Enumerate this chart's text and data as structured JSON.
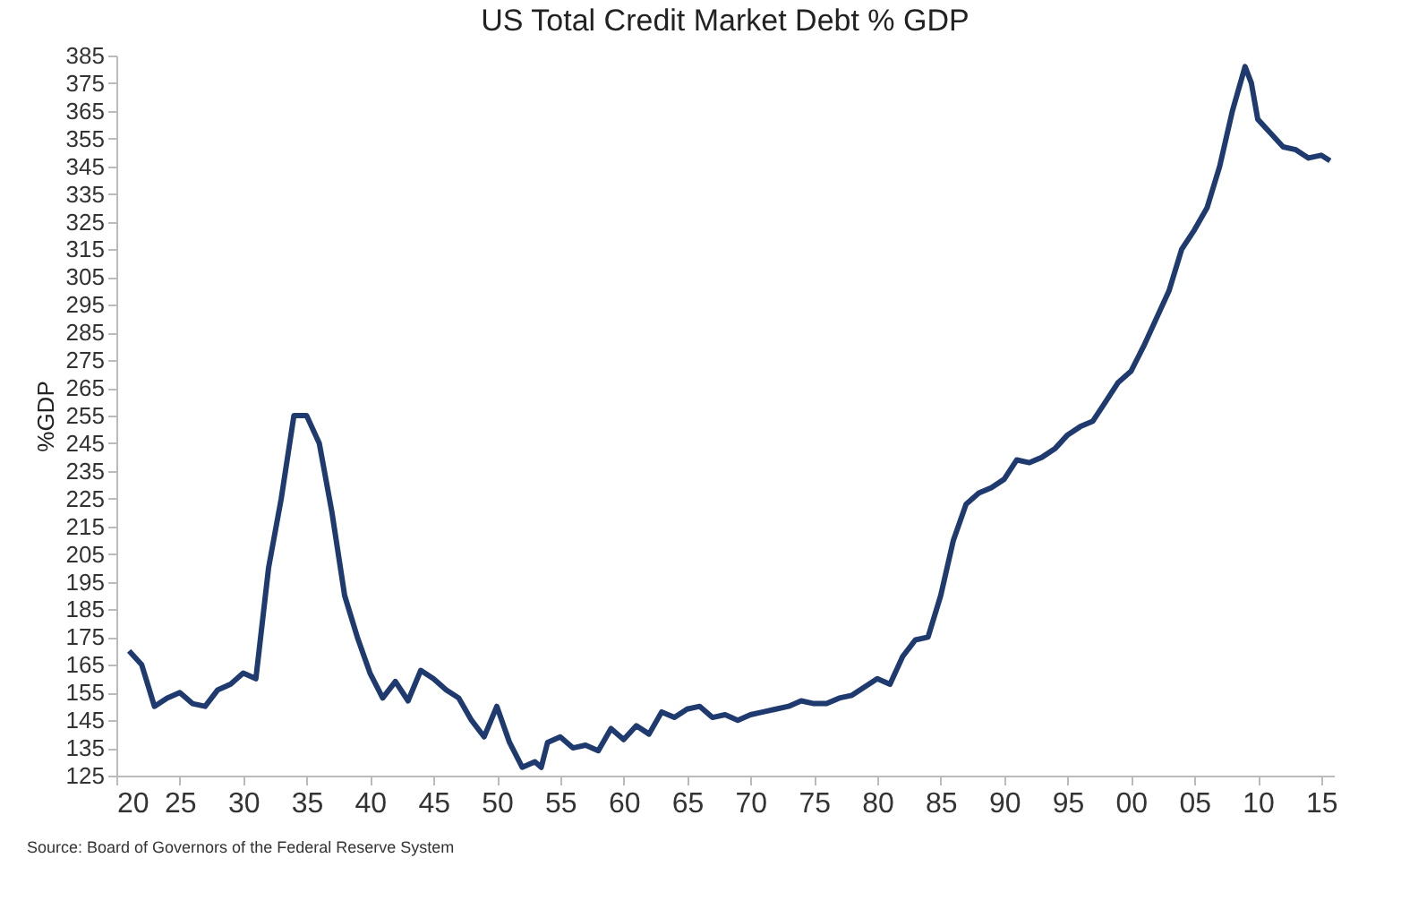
{
  "chart_data": {
    "type": "line",
    "title": "US Total Credit Market Debt % GDP",
    "ylabel": "%GDP",
    "annotations": [
      "Source: Board of Governors of the Federal Reserve System"
    ],
    "x": [
      1921,
      1922,
      1923,
      1924,
      1925,
      1926,
      1927,
      1928,
      1929,
      1930,
      1931,
      1932,
      1933,
      1934,
      1935,
      1936,
      1937,
      1938,
      1939,
      1940,
      1941,
      1942,
      1943,
      1944,
      1945,
      1946,
      1947,
      1948,
      1949,
      1950,
      1951,
      1952,
      1953,
      1953.5,
      1954,
      1955,
      1956,
      1957,
      1958,
      1959,
      1960,
      1961,
      1962,
      1963,
      1964,
      1965,
      1966,
      1967,
      1968,
      1969,
      1970,
      1971,
      1972,
      1973,
      1974,
      1975,
      1976,
      1977,
      1978,
      1979,
      1980,
      1981,
      1982,
      1983,
      1984,
      1985,
      1986,
      1987,
      1988,
      1989,
      1990,
      1991,
      1992,
      1993,
      1994,
      1995,
      1996,
      1997,
      1998,
      1999,
      2000,
      2001,
      2002,
      2003,
      2004,
      2005,
      2006,
      2007,
      2008,
      2009,
      2009.5,
      2010,
      2011,
      2012,
      2013,
      2014,
      2015,
      2015.7
    ],
    "series": [
      {
        "color": "#1f3a6e",
        "values": [
          170,
          165,
          150,
          153,
          155,
          151,
          150,
          156,
          158,
          162,
          160,
          200,
          225,
          255,
          255,
          245,
          220,
          190,
          175,
          162,
          153,
          159,
          152,
          163,
          160,
          156,
          153,
          145,
          139,
          150,
          137,
          128,
          130,
          128,
          137,
          139,
          135,
          136,
          134,
          142,
          138,
          143,
          140,
          148,
          146,
          149,
          150,
          146,
          147,
          145,
          147,
          148,
          149,
          150,
          152,
          151,
          151,
          153,
          154,
          157,
          160,
          158,
          168,
          174,
          175,
          190,
          210,
          223,
          227,
          229,
          232,
          239,
          238,
          240,
          243,
          248,
          251,
          253,
          260,
          267,
          271,
          280,
          290,
          300,
          315,
          322,
          330,
          345,
          365,
          381,
          375,
          362,
          357,
          352,
          351,
          348,
          349,
          347
        ]
      }
    ],
    "xlim": [
      1920,
      2016
    ],
    "xticks": [
      {
        "value": 1920,
        "label": "20"
      },
      {
        "value": 1925,
        "label": "25"
      },
      {
        "value": 1930,
        "label": "30"
      },
      {
        "value": 1935,
        "label": "35"
      },
      {
        "value": 1940,
        "label": "40"
      },
      {
        "value": 1945,
        "label": "45"
      },
      {
        "value": 1950,
        "label": "50"
      },
      {
        "value": 1955,
        "label": "55"
      },
      {
        "value": 1960,
        "label": "60"
      },
      {
        "value": 1965,
        "label": "65"
      },
      {
        "value": 1970,
        "label": "70"
      },
      {
        "value": 1975,
        "label": "75"
      },
      {
        "value": 1980,
        "label": "80"
      },
      {
        "value": 1985,
        "label": "85"
      },
      {
        "value": 1990,
        "label": "90"
      },
      {
        "value": 1995,
        "label": "95"
      },
      {
        "value": 2000,
        "label": "00"
      },
      {
        "value": 2005,
        "label": "05"
      },
      {
        "value": 2010,
        "label": "10"
      },
      {
        "value": 2015,
        "label": "15"
      }
    ],
    "ylim": [
      125,
      385
    ],
    "yticks": [
      125,
      135,
      145,
      155,
      165,
      175,
      185,
      195,
      205,
      215,
      225,
      235,
      245,
      255,
      265,
      275,
      285,
      295,
      305,
      315,
      325,
      335,
      345,
      355,
      365,
      375,
      385
    ],
    "grid": false,
    "line_style": "solid",
    "marker": "none"
  }
}
